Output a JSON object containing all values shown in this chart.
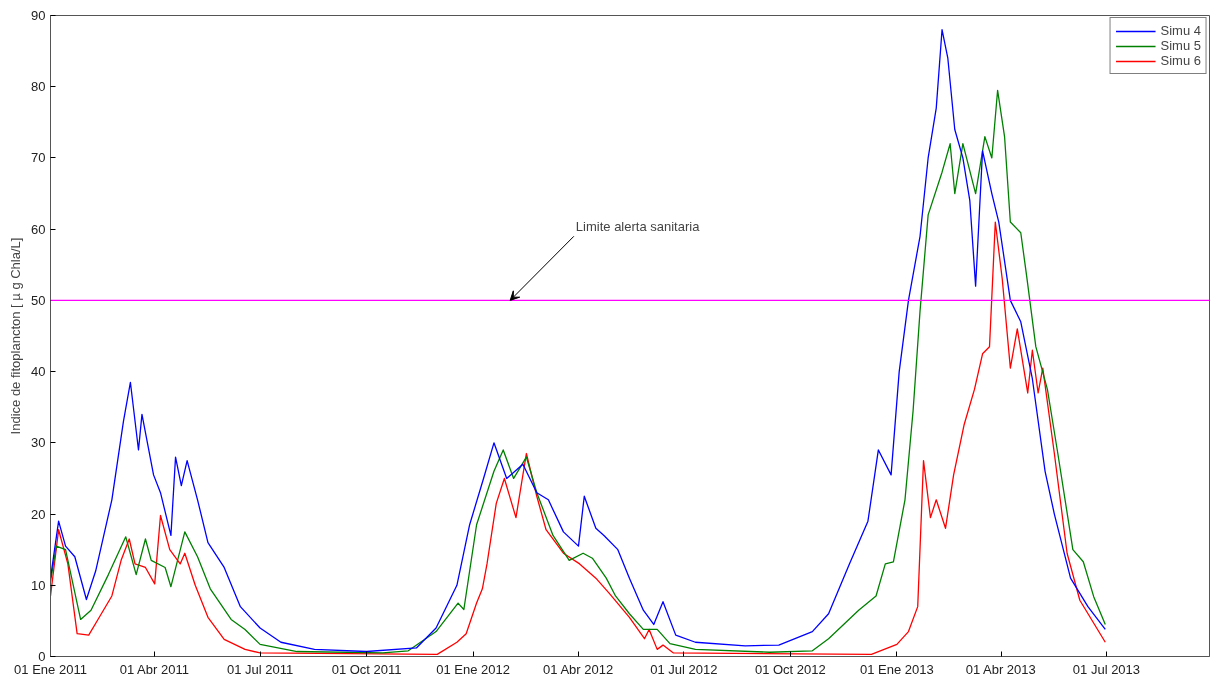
{
  "chart_data": {
    "type": "line",
    "ylabel": "Indice de fitoplancton [ µ g Chla/L]",
    "xlim": [
      "2011-01-01",
      "2013-09-28"
    ],
    "ylim": [
      0,
      90
    ],
    "yticks": [
      0,
      10,
      20,
      30,
      40,
      50,
      60,
      70,
      80,
      90
    ],
    "xticks": [
      {
        "value": "2011-01-01",
        "label": "01 Ene 2011"
      },
      {
        "value": "2011-04-01",
        "label": "01 Abr 2011"
      },
      {
        "value": "2011-07-01",
        "label": "01 Jul 2011"
      },
      {
        "value": "2011-10-01",
        "label": "01 Oct 2011"
      },
      {
        "value": "2012-01-01",
        "label": "01 Ene 2012"
      },
      {
        "value": "2012-04-01",
        "label": "01 Abr 2012"
      },
      {
        "value": "2012-07-01",
        "label": "01 Jul 2012"
      },
      {
        "value": "2012-10-01",
        "label": "01 Oct 2012"
      },
      {
        "value": "2013-01-01",
        "label": "01 Ene 2013"
      },
      {
        "value": "2013-04-01",
        "label": "01 Abr 2013"
      },
      {
        "value": "2013-07-01",
        "label": "01 Jul 2013"
      }
    ],
    "grid": false,
    "legend": "top right",
    "line_style": "solid",
    "marker": "none",
    "ref_lines": [
      {
        "axis": "y",
        "value": 50,
        "color": "#ff00ff"
      }
    ],
    "annotations": [
      {
        "text": "Limite alerta sanitaria",
        "x": "2012-02-02",
        "y": 50
      }
    ],
    "series": [
      {
        "name": "Simu 4",
        "color": "#0000ff",
        "x": [
          "2011-01-01",
          "2011-01-08",
          "2011-01-14",
          "2011-01-22",
          "2011-02-01",
          "2011-02-09",
          "2011-02-23",
          "2011-03-05",
          "2011-03-11",
          "2011-03-18",
          "2011-03-21",
          "2011-03-31",
          "2011-04-06",
          "2011-04-15",
          "2011-04-19",
          "2011-04-24",
          "2011-04-29",
          "2011-05-08",
          "2011-05-17",
          "2011-05-31",
          "2011-06-14",
          "2011-07-01",
          "2011-07-19",
          "2011-08-17",
          "2011-10-01",
          "2011-11-13",
          "2011-11-30",
          "2011-12-18",
          "2011-12-29",
          "2012-01-10",
          "2012-01-19",
          "2012-01-30",
          "2012-02-13",
          "2012-02-25",
          "2012-03-06",
          "2012-03-19",
          "2012-04-01",
          "2012-04-06",
          "2012-04-16",
          "2012-04-23",
          "2012-05-05",
          "2012-05-15",
          "2012-05-27",
          "2012-06-05",
          "2012-06-13",
          "2012-06-24",
          "2012-07-11",
          "2012-08-23",
          "2012-09-21",
          "2012-10-20",
          "2012-11-03",
          "2012-11-21",
          "2012-12-07",
          "2012-12-16",
          "2012-12-27",
          "2013-01-03",
          "2013-01-11",
          "2013-01-21",
          "2013-01-28",
          "2013-02-04",
          "2013-02-09",
          "2013-02-14",
          "2013-02-20",
          "2013-02-27",
          "2013-03-05",
          "2013-03-10",
          "2013-03-16",
          "2013-03-24",
          "2013-03-30",
          "2013-04-09",
          "2013-04-18",
          "2013-04-28",
          "2013-05-09",
          "2013-05-17",
          "2013-05-31",
          "2013-06-15",
          "2013-06-30"
        ],
        "values": [
          11,
          19,
          15.5,
          14,
          8,
          12,
          22,
          33,
          38.5,
          29,
          34,
          25.5,
          23,
          17,
          28,
          24,
          27.5,
          22,
          16,
          12.5,
          7,
          4,
          2,
          1,
          0.7,
          1.2,
          4,
          10,
          18.5,
          25,
          30,
          25,
          27,
          23,
          22,
          17.5,
          15.5,
          22.5,
          18,
          17,
          15,
          11,
          6.5,
          4.5,
          7.7,
          3,
          2,
          1.5,
          1.6,
          3.5,
          6,
          13,
          19,
          29,
          25.5,
          40,
          50,
          59,
          70,
          77,
          88,
          84,
          74,
          70,
          64,
          52,
          71,
          65,
          61,
          50,
          47,
          39,
          26,
          20,
          11,
          7,
          3.8
        ]
      },
      {
        "name": "Simu 5",
        "color": "#008000",
        "x": [
          "2011-01-01",
          "2011-01-06",
          "2011-01-14",
          "2011-01-27",
          "2011-02-05",
          "2011-02-20",
          "2011-03-07",
          "2011-03-16",
          "2011-03-24",
          "2011-03-29",
          "2011-04-10",
          "2011-04-15",
          "2011-04-27",
          "2011-05-08",
          "2011-05-19",
          "2011-06-06",
          "2011-06-18",
          "2011-07-01",
          "2011-08-02",
          "2011-10-15",
          "2011-11-06",
          "2011-11-30",
          "2011-12-19",
          "2011-12-24",
          "2012-01-04",
          "2012-01-19",
          "2012-01-27",
          "2012-02-05",
          "2012-02-16",
          "2012-02-25",
          "2012-03-10",
          "2012-03-24",
          "2012-04-05",
          "2012-04-13",
          "2012-04-25",
          "2012-05-03",
          "2012-05-15",
          "2012-05-27",
          "2012-06-08",
          "2012-06-19",
          "2012-07-11",
          "2012-09-13",
          "2012-10-20",
          "2012-11-03",
          "2012-11-29",
          "2012-12-14",
          "2012-12-22",
          "2012-12-29",
          "2013-01-08",
          "2013-01-15",
          "2013-01-21",
          "2013-01-28",
          "2013-02-09",
          "2013-02-16",
          "2013-02-20",
          "2013-02-27",
          "2013-03-10",
          "2013-03-18",
          "2013-03-24",
          "2013-03-29",
          "2013-04-04",
          "2013-04-09",
          "2013-04-18",
          "2013-04-23",
          "2013-05-01",
          "2013-05-11",
          "2013-05-20",
          "2013-06-02",
          "2013-06-11",
          "2013-06-20",
          "2013-06-30"
        ],
        "values": [
          10.5,
          15.5,
          15,
          5.2,
          6.5,
          11.5,
          16.8,
          11.5,
          16.5,
          13.5,
          12.5,
          9.8,
          17.5,
          14,
          9.5,
          5.2,
          3.8,
          1.7,
          0.7,
          0.5,
          0.8,
          3.5,
          7.5,
          6.6,
          18.5,
          26,
          29,
          25,
          28,
          23,
          17,
          13.5,
          14.5,
          13.8,
          11,
          8.5,
          6,
          3.8,
          3.8,
          1.8,
          1,
          0.6,
          0.8,
          2.5,
          6.5,
          8.5,
          13,
          13.3,
          22,
          34.5,
          48.5,
          62,
          68,
          72,
          65,
          72,
          65,
          73,
          70,
          79.5,
          73,
          61,
          59.5,
          53.5,
          43.5,
          37.5,
          28.5,
          15,
          13.3,
          8.4,
          4.5
        ]
      },
      {
        "name": "Simu 6",
        "color": "#ff0000",
        "x": [
          "2011-01-01",
          "2011-01-08",
          "2011-01-16",
          "2011-01-24",
          "2011-02-03",
          "2011-02-11",
          "2011-02-23",
          "2011-03-03",
          "2011-03-10",
          "2011-03-15",
          "2011-03-24",
          "2011-04-01",
          "2011-04-06",
          "2011-04-14",
          "2011-04-23",
          "2011-04-27",
          "2011-05-06",
          "2011-05-17",
          "2011-05-31",
          "2011-06-18",
          "2011-07-01",
          "2011-12-01",
          "2011-12-18",
          "2011-12-26",
          "2012-01-04",
          "2012-01-09",
          "2012-01-13",
          "2012-01-21",
          "2012-01-28",
          "2012-02-07",
          "2012-02-16",
          "2012-02-25",
          "2012-03-04",
          "2012-03-19",
          "2012-04-02",
          "2012-04-16",
          "2012-04-28",
          "2012-05-15",
          "2012-05-28",
          "2012-06-01",
          "2012-06-08",
          "2012-06-13",
          "2012-06-22",
          "2012-12-10",
          "2013-01-01",
          "2013-01-11",
          "2013-01-19",
          "2013-01-24",
          "2013-01-30",
          "2013-02-04",
          "2013-02-12",
          "2013-02-19",
          "2013-02-28",
          "2013-03-09",
          "2013-03-16",
          "2013-03-22",
          "2013-03-27",
          "2013-04-02",
          "2013-04-09",
          "2013-04-15",
          "2013-04-24",
          "2013-04-28",
          "2013-05-03",
          "2013-05-07",
          "2013-05-17",
          "2013-05-28",
          "2013-06-08",
          "2013-06-30"
        ],
        "values": [
          8.5,
          17.8,
          13,
          3.2,
          3,
          5.2,
          8.5,
          13.5,
          16.5,
          13,
          12.5,
          10.2,
          19.8,
          15,
          13,
          14.5,
          10,
          5.5,
          2.4,
          1,
          0.5,
          0.3,
          2,
          3.2,
          7.5,
          9.5,
          13,
          21.5,
          25,
          19.5,
          28.5,
          22.5,
          17.8,
          14.5,
          13,
          11,
          8.8,
          5.5,
          2.5,
          3.8,
          1,
          1.6,
          0.5,
          0.3,
          1.7,
          3.5,
          7,
          27.5,
          19.5,
          22,
          18,
          25.5,
          32.5,
          37.5,
          42.5,
          43.5,
          61,
          53,
          40.5,
          46,
          37,
          43,
          37,
          40.5,
          28.5,
          14.5,
          7.9,
          2
        ]
      }
    ]
  }
}
